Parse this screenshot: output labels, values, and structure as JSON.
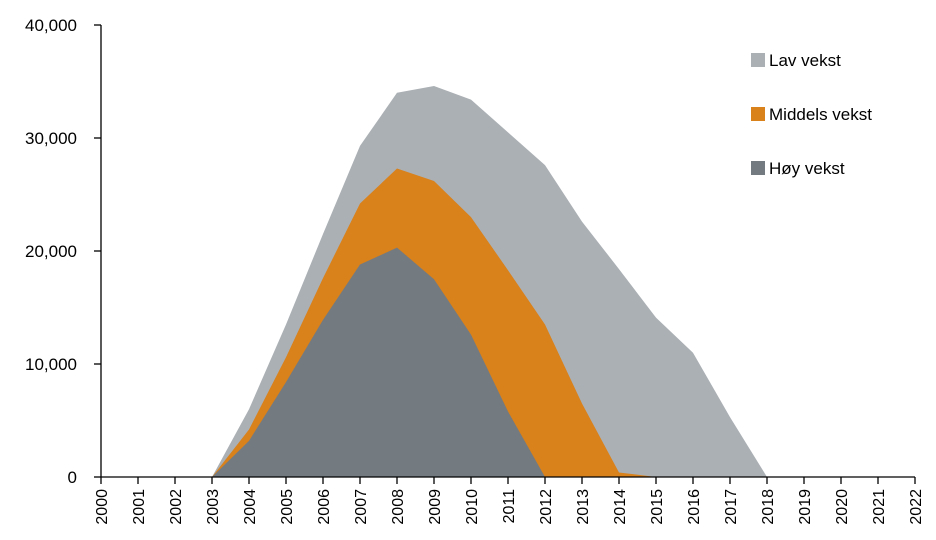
{
  "chart_data": {
    "type": "area",
    "title": "",
    "xlabel": "",
    "ylabel": "",
    "ylim": [
      0,
      40000
    ],
    "yticks": [
      "0",
      "10,000",
      "20,000",
      "30,000",
      "40,000"
    ],
    "x": [
      "2000",
      "2001",
      "2002",
      "2003",
      "2004",
      "2005",
      "2006",
      "2007",
      "2008",
      "2009",
      "2010",
      "2011",
      "2012",
      "2013",
      "2014",
      "2015",
      "2016",
      "2017",
      "2018",
      "2019",
      "2020",
      "2021",
      "2022"
    ],
    "series": [
      {
        "name": "Lav vekst",
        "color": "#abb0b5",
        "values": [
          0,
          0,
          0,
          0,
          6000,
          13500,
          21500,
          29300,
          34000,
          34600,
          33400,
          30500,
          27600,
          22600,
          18400,
          14100,
          11000,
          5300,
          0,
          0,
          0,
          0,
          0
        ]
      },
      {
        "name": "Middels vekst",
        "color": "#d9811b",
        "values": [
          0,
          0,
          0,
          0,
          4200,
          10600,
          17600,
          24200,
          27300,
          26200,
          23000,
          18300,
          13500,
          6500,
          400,
          0,
          0,
          0,
          0,
          0,
          0,
          0,
          0
        ]
      },
      {
        "name": "Høy vekst",
        "color": "#737a80",
        "values": [
          0,
          0,
          0,
          0,
          3200,
          8400,
          13900,
          18800,
          20300,
          17500,
          12600,
          5800,
          0,
          0,
          0,
          0,
          0,
          0,
          0,
          0,
          0,
          0,
          0
        ]
      }
    ],
    "legend_position": "top-right",
    "grid": false
  }
}
